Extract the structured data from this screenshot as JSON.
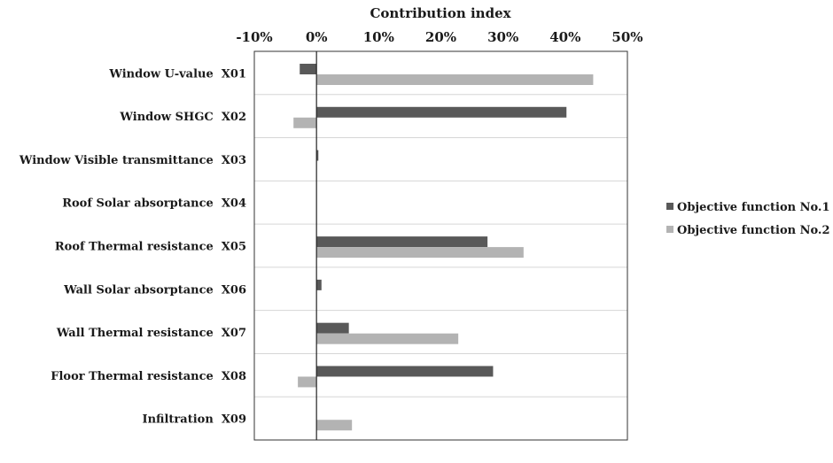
{
  "chart_data": {
    "type": "bar",
    "orientation": "horizontal",
    "title": "",
    "xlabel": "Contribution index",
    "ylabel": "",
    "xlim": [
      -10,
      50
    ],
    "x_ticks": [
      -10,
      0,
      10,
      20,
      30,
      40,
      50
    ],
    "x_tick_labels": [
      "-10%",
      "0%",
      "10%",
      "20%",
      "30%",
      "40%",
      "50%"
    ],
    "categories": [
      "Window U-value  X01",
      "Window SHGC  X02",
      "Window Visible transmittance  X03",
      "Roof Solar absorptance  X04",
      "Roof Thermal resistance  X05",
      "Wall Solar absorptance  X06",
      "Wall Thermal resistance  X07",
      "Floor Thermal resistance  X08",
      "Infiltration  X09"
    ],
    "series": [
      {
        "name": "Objective function No.1",
        "color": "#595959",
        "values": [
          -2.7,
          40.2,
          0.3,
          0.0,
          27.5,
          0.8,
          5.2,
          28.4,
          0.0
        ]
      },
      {
        "name": "Objective function No.2",
        "color": "#b3b3b3",
        "values": [
          44.5,
          -3.7,
          0.0,
          0.0,
          33.3,
          0.0,
          22.8,
          -3.0,
          5.7
        ]
      }
    ],
    "grid": "horizontal-separators",
    "legend": "right"
  }
}
